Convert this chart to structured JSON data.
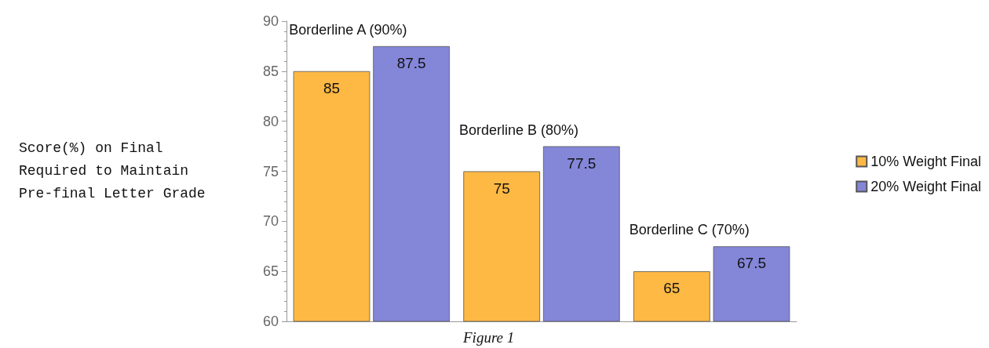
{
  "chart_data": {
    "type": "bar",
    "ylabel": "Score(%) on Final\nRequired to Maintain\nPre-final Letter Grade",
    "categories": [
      "Borderline A (90%)",
      "Borderline B (80%)",
      "Borderline C (70%)"
    ],
    "series": [
      {
        "name": "10% Weight Final",
        "color": "#fdb944",
        "values": [
          85,
          75,
          65
        ]
      },
      {
        "name": "20% Weight Final",
        "color": "#8486d8",
        "values": [
          87.5,
          77.5,
          67.5
        ]
      }
    ],
    "ylim": [
      60,
      90
    ],
    "yticks": [
      60,
      65,
      70,
      75,
      80,
      85,
      90
    ],
    "grid": false,
    "legend": "right",
    "data_labels": true,
    "annotations": [
      "Figure 1"
    ]
  }
}
